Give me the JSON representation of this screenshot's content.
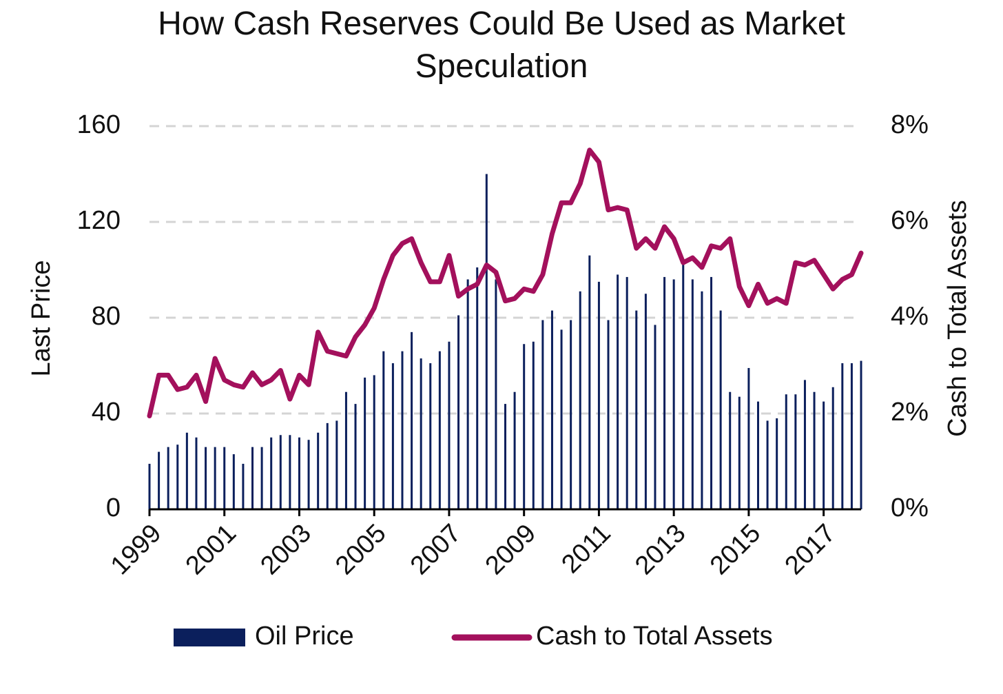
{
  "chart_data": {
    "type": "bar-line",
    "title": "How Cash Reserves Could Be Used as Market Speculation",
    "ylabel": "Last Price",
    "y2label": "Cash to Total Assets",
    "x": [
      1999,
      1999.25,
      1999.5,
      1999.75,
      2000,
      2000.25,
      2000.5,
      2000.75,
      2001,
      2001.25,
      2001.5,
      2001.75,
      2002,
      2002.25,
      2002.5,
      2002.75,
      2003,
      2003.25,
      2003.5,
      2003.75,
      2004,
      2004.25,
      2004.5,
      2004.75,
      2005,
      2005.25,
      2005.5,
      2005.75,
      2006,
      2006.25,
      2006.5,
      2006.75,
      2007,
      2007.25,
      2007.5,
      2007.75,
      2008,
      2008.25,
      2008.5,
      2008.75,
      2009,
      2009.25,
      2009.5,
      2009.75,
      2010,
      2010.25,
      2010.5,
      2010.75,
      2011,
      2011.25,
      2011.5,
      2011.75,
      2012,
      2012.25,
      2012.5,
      2012.75,
      2013,
      2013.25,
      2013.5,
      2013.75,
      2014,
      2014.25,
      2014.5,
      2014.75,
      2015,
      2015.25,
      2015.5,
      2015.75,
      2016,
      2016.25,
      2016.5,
      2016.75,
      2017,
      2017.25,
      2017.5,
      2017.75,
      2018
    ],
    "series": [
      {
        "name": "Oil Price",
        "type": "bar",
        "color": "#0b1f5c",
        "values": [
          19,
          24,
          26,
          27,
          32,
          30,
          26,
          26,
          26,
          23,
          19,
          26,
          26,
          30,
          31,
          31,
          30,
          29,
          32,
          36,
          37,
          49,
          44,
          55,
          56,
          66,
          61,
          66,
          74,
          63,
          61,
          66,
          70,
          81,
          96,
          101,
          140,
          96,
          44,
          49,
          69,
          70,
          79,
          83,
          75,
          79,
          91,
          106,
          95,
          79,
          98,
          97,
          83,
          90,
          77,
          97,
          96,
          103,
          96,
          91,
          97,
          83,
          49,
          47,
          59,
          45,
          37,
          38,
          48,
          48,
          54,
          49,
          45,
          51,
          61,
          61,
          62
        ]
      },
      {
        "name": "Cash to Total Assets",
        "type": "line",
        "axis": "y2",
        "color": "#a3105c",
        "values": [
          1.95,
          2.8,
          2.8,
          2.5,
          2.55,
          2.8,
          2.25,
          3.15,
          2.7,
          2.6,
          2.55,
          2.85,
          2.6,
          2.7,
          2.9,
          2.3,
          2.8,
          2.6,
          3.7,
          3.3,
          3.25,
          3.2,
          3.6,
          3.85,
          4.2,
          4.8,
          5.3,
          5.55,
          5.65,
          5.15,
          4.75,
          4.75,
          5.3,
          4.45,
          4.6,
          4.7,
          5.1,
          4.95,
          4.35,
          4.4,
          4.6,
          4.55,
          4.9,
          5.75,
          6.4,
          6.4,
          6.8,
          7.5,
          7.25,
          6.25,
          6.3,
          6.25,
          5.45,
          5.65,
          5.45,
          5.9,
          5.65,
          5.15,
          5.25,
          5.05,
          5.5,
          5.45,
          5.65,
          4.65,
          4.25,
          4.7,
          4.3,
          4.4,
          4.3,
          5.15,
          5.1,
          5.2,
          4.9,
          4.6,
          4.8,
          4.9,
          5.35
        ]
      }
    ],
    "xlim": [
      1999,
      2018
    ],
    "xticks": [
      1999,
      2001,
      2003,
      2005,
      2007,
      2009,
      2011,
      2013,
      2015,
      2017
    ],
    "ylim": [
      0,
      160
    ],
    "yticks": [
      0,
      40,
      80,
      120,
      160
    ],
    "y2lim": [
      0,
      8
    ],
    "y2ticks": [
      {
        "value": 0,
        "label": "0%"
      },
      {
        "value": 2,
        "label": "2%"
      },
      {
        "value": 4,
        "label": "4%"
      },
      {
        "value": 6,
        "label": "6%"
      },
      {
        "value": 8,
        "label": "8%"
      }
    ],
    "grid": true,
    "legend": "bottom"
  }
}
